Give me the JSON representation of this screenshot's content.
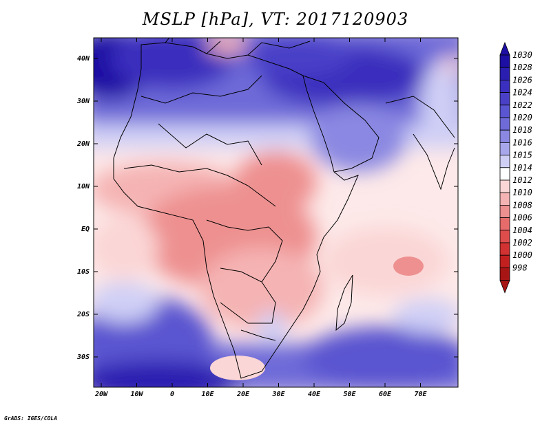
{
  "title": "MSLP [hPa], VT: 2017120903",
  "credit": "GrADS: IGES/COLA",
  "lon_ticks": [
    "20W",
    "10W",
    "0",
    "10E",
    "20E",
    "30E",
    "40E",
    "50E",
    "60E",
    "70E"
  ],
  "lat_ticks": [
    "40N",
    "30N",
    "20N",
    "10N",
    "EQ",
    "10S",
    "20S",
    "30S"
  ],
  "colorbar": {
    "levels": [
      "1030",
      "1028",
      "1026",
      "1024",
      "1022",
      "1020",
      "1018",
      "1016",
      "1015",
      "1014",
      "1012",
      "1010",
      "1008",
      "1006",
      "1004",
      "1002",
      "1000",
      "998"
    ],
    "colors": [
      "#1d0fa3",
      "#2a1eb0",
      "#3a2fbe",
      "#4a40c8",
      "#5a55d0",
      "#6e6ad8",
      "#8a88e2",
      "#a8a7ec",
      "#cfcff6",
      "#ffffff",
      "#fbd6d6",
      "#f5b3b3",
      "#ee9090",
      "#e66b6b",
      "#de4c4c",
      "#d23232",
      "#c22020",
      "#a81515"
    ]
  }
}
